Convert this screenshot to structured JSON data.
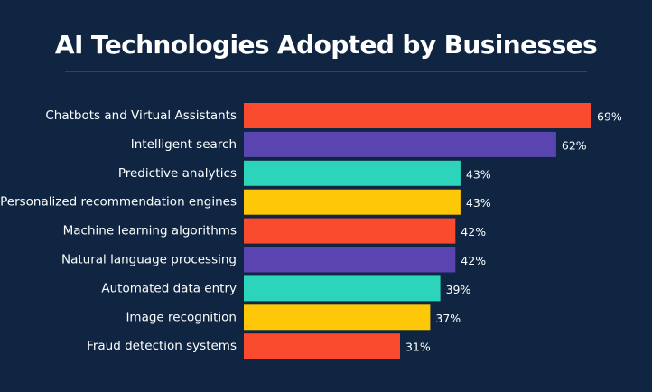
{
  "chart_data": {
    "type": "bar",
    "orientation": "horizontal",
    "title": "AI Technologies Adopted by Businesses",
    "categories": [
      "Chatbots and Virtual Assistants",
      "Intelligent search",
      "Predictive analytics",
      "Personalized recommendation engines",
      "Machine learning algorithms",
      "Natural language processing",
      "Automated data entry",
      "Image recognition",
      "Fraud detection systems"
    ],
    "values": [
      69,
      62,
      43,
      43,
      42,
      42,
      39,
      37,
      31
    ],
    "value_labels": [
      "69%",
      "62%",
      "43%",
      "43%",
      "42%",
      "42%",
      "39%",
      "37%",
      "31%"
    ],
    "colors": [
      "#fb4b2e",
      "#5a45b0",
      "#2dd4bc",
      "#fec708",
      "#fb4b2e",
      "#5a45b0",
      "#2dd4bc",
      "#fec708",
      "#fb4b2e"
    ],
    "xlim": [
      0,
      69
    ],
    "grid": false,
    "legend": "none",
    "background": "#0f2541"
  }
}
